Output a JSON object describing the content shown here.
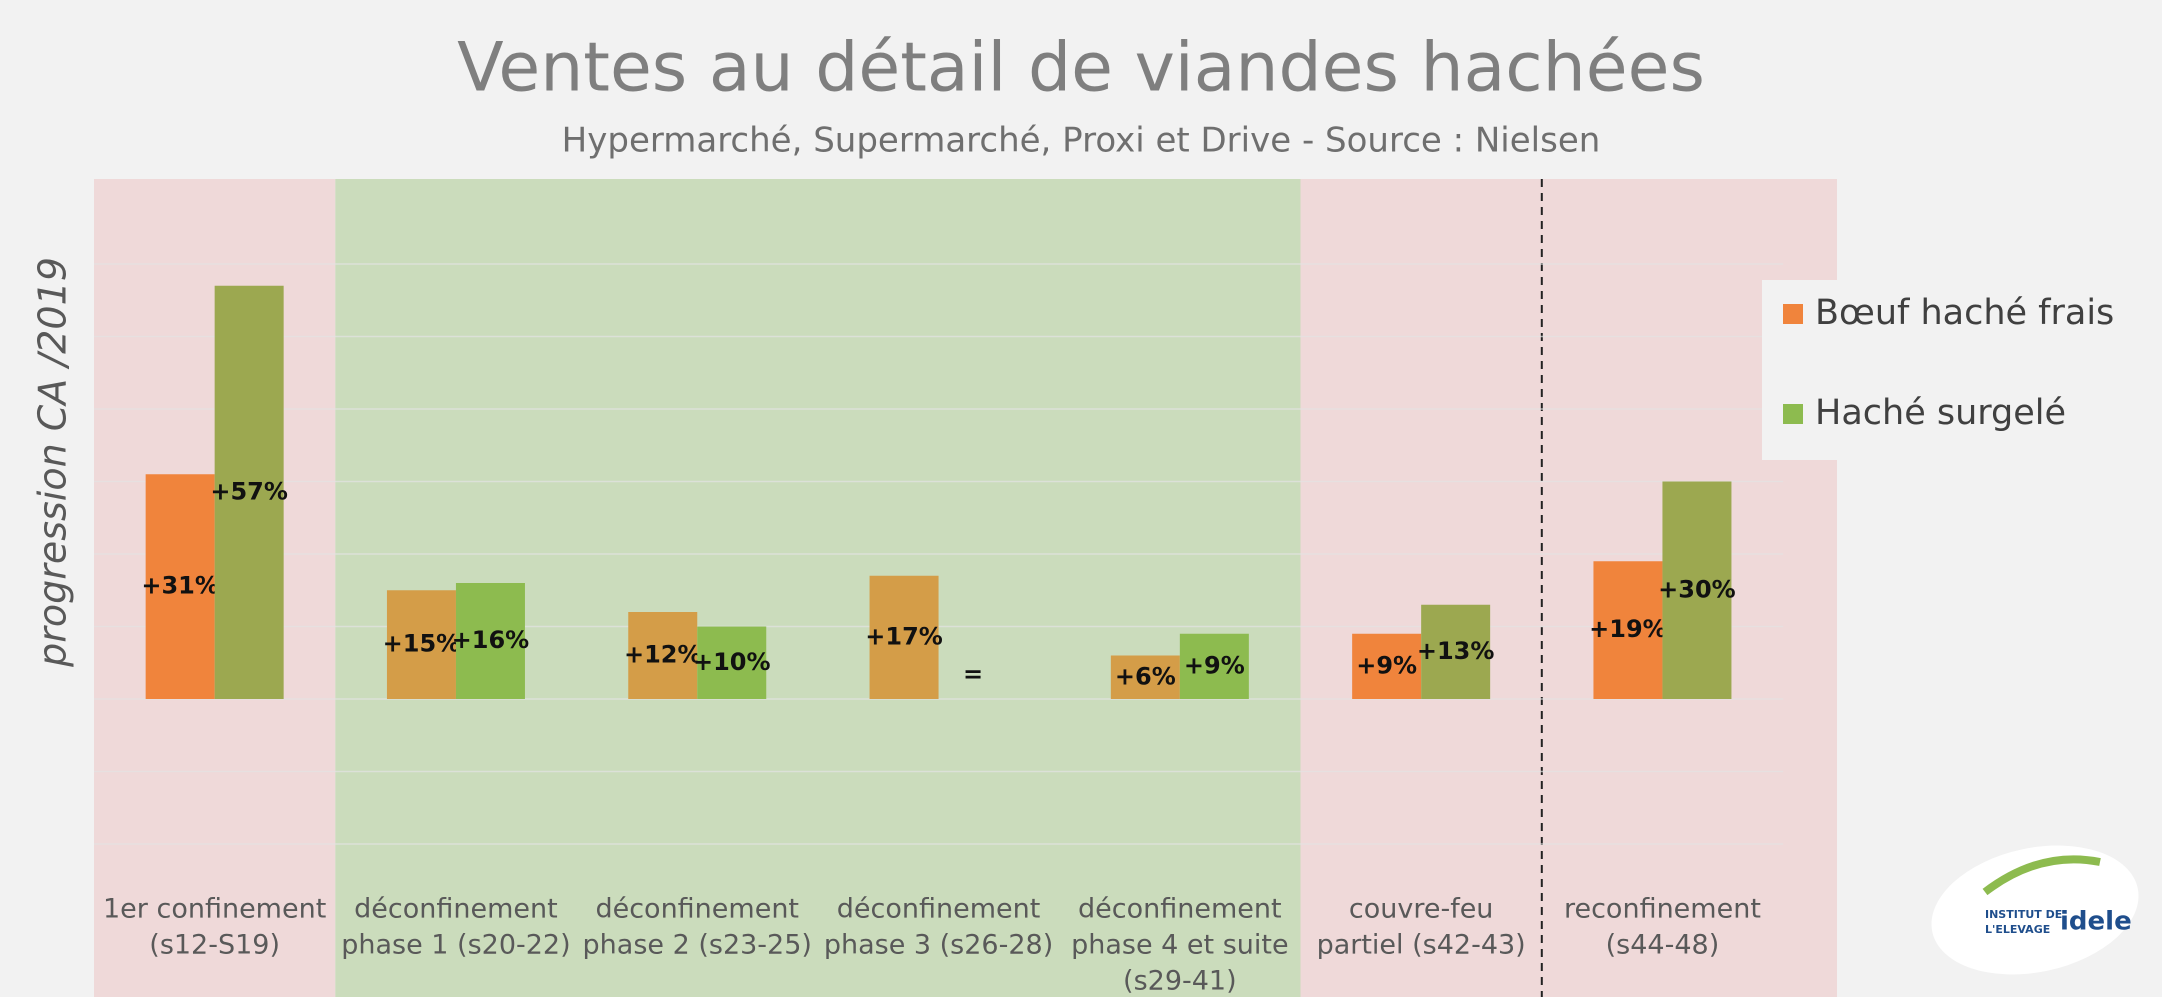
{
  "chart_data": {
    "type": "bar",
    "title": "Ventes au détail de viandes hachées",
    "subtitle": "Hypermarché, Supermarché, Proxi et Drive -  Source :  Nielsen",
    "y_label": "progression CA /2019",
    "categories": [
      [
        "1er confinement",
        "(s12-S19)"
      ],
      [
        "déconfinement",
        "phase 1 (s20-22)"
      ],
      [
        "déconfinement",
        "phase 2 (s23-25)"
      ],
      [
        "déconfinement",
        "phase 3 (s26-28)"
      ],
      [
        "déconfinement",
        "phase 4 et suite",
        "(s29-41)"
      ],
      [
        "couvre-feu",
        "partiel (s42-43)"
      ],
      [
        "reconfinement",
        "(s44-48)"
      ]
    ],
    "series": [
      {
        "name": "Bœuf haché frais",
        "color": "#f0843c",
        "colors": [
          "#f0843c",
          "#d49d48",
          "#d49d48",
          "#d49d48",
          "#d49d48",
          "#f0843c",
          "#f0843c"
        ],
        "values": [
          31,
          15,
          12,
          17,
          6,
          9,
          19
        ],
        "value_labels": [
          "+31%",
          "+15%",
          "+12%",
          "+17%",
          "+6%",
          "+9%",
          "+19%"
        ]
      },
      {
        "name": "Haché surgelé",
        "color": "#8dbb4f",
        "colors": [
          "#9ca850",
          "#8dbb4f",
          "#8dbb4f",
          null,
          "#8dbb4f",
          "#9ca850",
          "#9ca850"
        ],
        "values": [
          57,
          16,
          10,
          0,
          9,
          13,
          30
        ],
        "value_labels": [
          "+57%",
          "+16%",
          "+10%",
          "=",
          "+9%",
          "+13%",
          "+30%"
        ]
      }
    ],
    "ylim": [
      -20,
      60
    ],
    "yticks": [
      -20,
      -10,
      0,
      10,
      20,
      30,
      40,
      50,
      60
    ],
    "grid": true,
    "legend": "right",
    "logo": {
      "line1": "INSTITUT DE",
      "line2": "L'ELEVAGE",
      "name": "idele"
    }
  }
}
